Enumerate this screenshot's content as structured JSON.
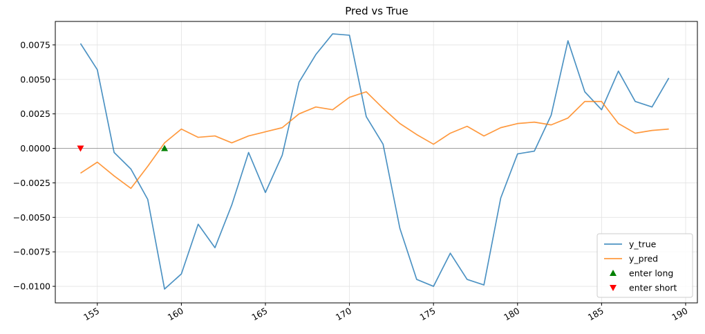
{
  "chart_data": {
    "type": "line",
    "title": "Pred vs True",
    "xlabel": "",
    "ylabel": "",
    "xlim": [
      152.5,
      190.7
    ],
    "ylim": [
      -0.0112,
      0.0092
    ],
    "xticks": [
      155,
      160,
      165,
      170,
      175,
      180,
      185,
      190
    ],
    "yticks": [
      -0.01,
      -0.0075,
      -0.005,
      -0.0025,
      0.0,
      0.0025,
      0.005,
      0.0075
    ],
    "ytick_labels": [
      "−0.0100",
      "−0.0075",
      "−0.0050",
      "−0.0025",
      "0.0000",
      "0.0025",
      "0.0050",
      "0.0075"
    ],
    "xtick_labels": [
      "155",
      "160",
      "165",
      "170",
      "175",
      "180",
      "185",
      "190"
    ],
    "grid": true,
    "zero_line": 0.0,
    "legend_position": "lower-right",
    "x": [
      154,
      155,
      156,
      157,
      158,
      159,
      160,
      161,
      162,
      163,
      164,
      165,
      166,
      167,
      168,
      169,
      170,
      171,
      172,
      173,
      174,
      175,
      176,
      177,
      178,
      179,
      180,
      181,
      182,
      183,
      184,
      185,
      186,
      187,
      188,
      189
    ],
    "series": [
      {
        "name": "y_true",
        "color": "#1f77b4",
        "values": [
          0.0076,
          0.0057,
          -0.0003,
          -0.0015,
          -0.0037,
          -0.0102,
          -0.0091,
          -0.0055,
          -0.0072,
          -0.0041,
          -0.0003,
          -0.0032,
          -0.0005,
          0.0048,
          0.0068,
          0.0083,
          0.0082,
          0.0023,
          0.0003,
          -0.0058,
          -0.0095,
          -0.01,
          -0.0076,
          -0.0095,
          -0.0099,
          -0.0036,
          -0.0004,
          -0.0002,
          0.0024,
          0.0078,
          0.0041,
          0.0028,
          0.0056,
          0.0034,
          0.003,
          0.0051
        ]
      },
      {
        "name": "y_pred",
        "color": "#ff7f0e",
        "values": [
          -0.0018,
          -0.001,
          -0.002,
          -0.0029,
          -0.0013,
          0.0004,
          0.0014,
          0.0008,
          0.0009,
          0.0004,
          0.0009,
          0.0012,
          0.0015,
          0.0025,
          0.003,
          0.0028,
          0.0037,
          0.0041,
          0.0029,
          0.0018,
          0.001,
          0.0003,
          0.0011,
          0.0016,
          0.0009,
          0.0015,
          0.0018,
          0.0019,
          0.0017,
          0.0022,
          0.0034,
          0.0034,
          0.0018,
          0.0011,
          0.0013,
          0.0014
        ]
      }
    ],
    "markers": [
      {
        "name": "enter long",
        "shape": "triangle-up",
        "color": "#008000",
        "points": [
          [
            159,
            0.0
          ]
        ]
      },
      {
        "name": "enter short",
        "shape": "triangle-down",
        "color": "#ff0000",
        "points": [
          [
            154,
            0.0
          ]
        ]
      }
    ]
  }
}
